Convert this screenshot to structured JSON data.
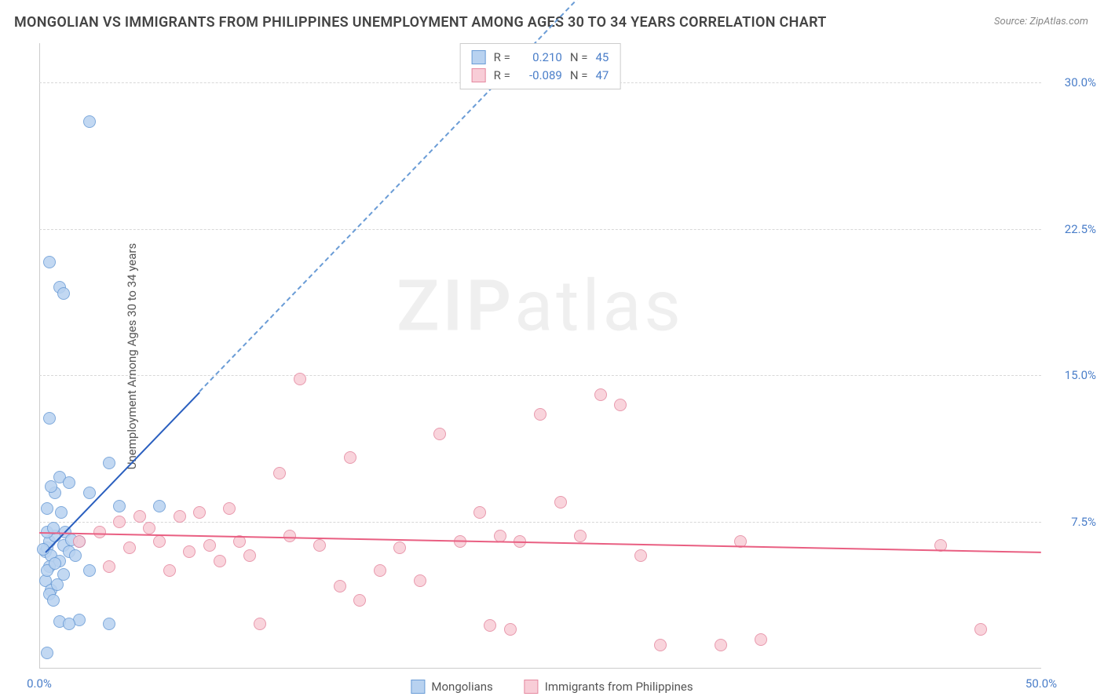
{
  "title": "MONGOLIAN VS IMMIGRANTS FROM PHILIPPINES UNEMPLOYMENT AMONG AGES 30 TO 34 YEARS CORRELATION CHART",
  "source": "Source: ZipAtlas.com",
  "ylabel": "Unemployment Among Ages 30 to 34 years",
  "watermark_a": "ZIP",
  "watermark_b": "atlas",
  "chart": {
    "type": "scatter",
    "xlim": [
      0,
      50
    ],
    "ylim": [
      0,
      32
    ],
    "xticks": [
      {
        "v": 0,
        "label": "0.0%"
      },
      {
        "v": 50,
        "label": "50.0%"
      }
    ],
    "yticks": [
      {
        "v": 7.5,
        "label": "7.5%"
      },
      {
        "v": 15.0,
        "label": "15.0%"
      },
      {
        "v": 22.5,
        "label": "22.5%"
      },
      {
        "v": 30.0,
        "label": "30.0%"
      }
    ],
    "grid_color": "#d8d8d8",
    "background_color": "#ffffff",
    "marker_radius": 8,
    "series": [
      {
        "name": "Mongolians",
        "fill": "#b8d2f0",
        "stroke": "#6a9cd6",
        "r_value": "0.210",
        "n_value": "45",
        "trend": {
          "x1": 0.3,
          "y1": 6.0,
          "x2": 8,
          "y2": 14.2,
          "color": "#2a5fbf",
          "dashed_extend_to_x": 27
        },
        "points": [
          [
            0.3,
            6.0
          ],
          [
            0.4,
            6.2
          ],
          [
            0.6,
            5.8
          ],
          [
            0.5,
            6.5
          ],
          [
            0.8,
            6.8
          ],
          [
            1.0,
            5.5
          ],
          [
            0.4,
            7.0
          ],
          [
            0.7,
            7.2
          ],
          [
            1.2,
            6.3
          ],
          [
            0.5,
            5.2
          ],
          [
            1.5,
            6.0
          ],
          [
            0.3,
            4.5
          ],
          [
            0.6,
            4.0
          ],
          [
            2.0,
            6.5
          ],
          [
            1.8,
            5.8
          ],
          [
            0.4,
            8.2
          ],
          [
            0.8,
            9.0
          ],
          [
            0.6,
            9.3
          ],
          [
            1.0,
            9.8
          ],
          [
            1.5,
            9.5
          ],
          [
            2.5,
            9.0
          ],
          [
            3.5,
            10.5
          ],
          [
            4.0,
            8.3
          ],
          [
            6.0,
            8.3
          ],
          [
            0.5,
            12.8
          ],
          [
            3.5,
            2.3
          ],
          [
            2.0,
            2.5
          ],
          [
            1.0,
            2.4
          ],
          [
            1.5,
            2.3
          ],
          [
            0.4,
            0.8
          ],
          [
            0.5,
            3.8
          ],
          [
            1.2,
            4.8
          ],
          [
            2.5,
            5.0
          ],
          [
            1.0,
            19.5
          ],
          [
            1.2,
            19.2
          ],
          [
            0.5,
            20.8
          ],
          [
            2.5,
            28.0
          ],
          [
            0.4,
            5.0
          ],
          [
            0.8,
            5.4
          ],
          [
            1.3,
            7.0
          ],
          [
            1.6,
            6.6
          ],
          [
            0.2,
            6.1
          ],
          [
            0.9,
            4.3
          ],
          [
            1.1,
            8.0
          ],
          [
            0.7,
            3.5
          ]
        ]
      },
      {
        "name": "Immigrants from Philippines",
        "fill": "#f8cdd7",
        "stroke": "#e589a0",
        "r_value": "-0.089",
        "n_value": "47",
        "trend": {
          "x1": 0,
          "y1": 7.0,
          "x2": 50,
          "y2": 6.0,
          "color": "#e95f82"
        },
        "points": [
          [
            2,
            6.5
          ],
          [
            3,
            7.0
          ],
          [
            4,
            7.5
          ],
          [
            4.5,
            6.2
          ],
          [
            5,
            7.8
          ],
          [
            5.5,
            7.2
          ],
          [
            6,
            6.5
          ],
          [
            7,
            7.8
          ],
          [
            7.5,
            6.0
          ],
          [
            8,
            8.0
          ],
          [
            8.5,
            6.3
          ],
          [
            9,
            5.5
          ],
          [
            9.5,
            8.2
          ],
          [
            10,
            6.5
          ],
          [
            10.5,
            5.8
          ],
          [
            11,
            2.3
          ],
          [
            12,
            10.0
          ],
          [
            13,
            14.8
          ],
          [
            14,
            6.3
          ],
          [
            15,
            4.2
          ],
          [
            15.5,
            10.8
          ],
          [
            16,
            3.5
          ],
          [
            17,
            5.0
          ],
          [
            18,
            6.2
          ],
          [
            19,
            4.5
          ],
          [
            20,
            12.0
          ],
          [
            21,
            6.5
          ],
          [
            22,
            8.0
          ],
          [
            23,
            6.8
          ],
          [
            23.5,
            2.0
          ],
          [
            25,
            13.0
          ],
          [
            26,
            8.5
          ],
          [
            27,
            6.8
          ],
          [
            28,
            14.0
          ],
          [
            29,
            13.5
          ],
          [
            30,
            5.8
          ],
          [
            31,
            1.2
          ],
          [
            34,
            1.2
          ],
          [
            35,
            6.5
          ],
          [
            36,
            1.5
          ],
          [
            45,
            6.3
          ],
          [
            47,
            2.0
          ],
          [
            3.5,
            5.2
          ],
          [
            6.5,
            5.0
          ],
          [
            12.5,
            6.8
          ],
          [
            24,
            6.5
          ],
          [
            22.5,
            2.2
          ]
        ]
      }
    ]
  },
  "stats_labels": {
    "r": "R =",
    "n": "N ="
  },
  "legend": {
    "series1": "Mongolians",
    "series2": "Immigrants from Philippines"
  }
}
